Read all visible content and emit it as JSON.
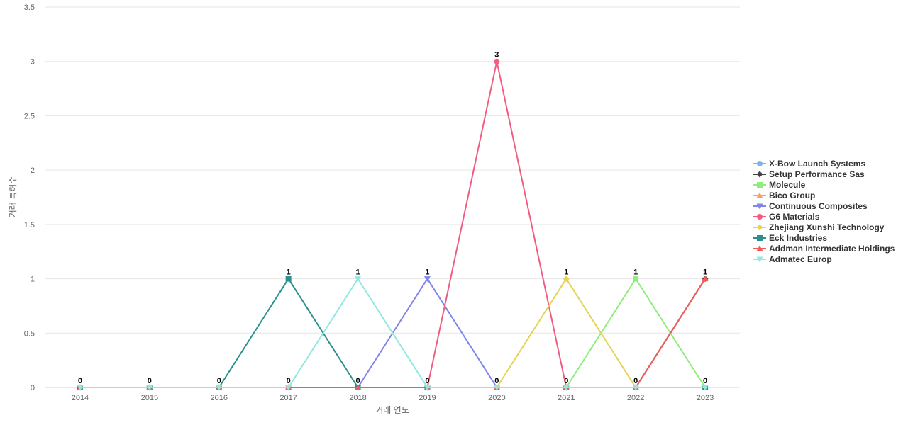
{
  "chart_data": {
    "type": "line",
    "title": "",
    "xlabel": "거래 연도",
    "ylabel": "거래 특허수",
    "categories": [
      "2014",
      "2015",
      "2016",
      "2017",
      "2018",
      "2019",
      "2020",
      "2021",
      "2022",
      "2023"
    ],
    "ylim": [
      0,
      3.5
    ],
    "yticks": [
      "0",
      "0.5",
      "1",
      "1.5",
      "2",
      "2.5",
      "3",
      "3.5"
    ],
    "grid": true,
    "legend_position": "right",
    "series": [
      {
        "name": "X-Bow Launch Systems",
        "color": "#7cb5ec",
        "marker": "circle",
        "values": [
          0,
          0,
          0,
          0,
          0,
          0,
          0,
          0,
          0,
          0
        ]
      },
      {
        "name": "Setup Performance Sas",
        "color": "#434348",
        "marker": "diamond",
        "values": [
          0,
          0,
          0,
          0,
          0,
          0,
          0,
          0,
          0,
          1
        ]
      },
      {
        "name": "Molecule",
        "color": "#90ed7d",
        "marker": "square",
        "values": [
          0,
          0,
          0,
          0,
          0,
          0,
          0,
          0,
          1,
          0
        ]
      },
      {
        "name": "Bico Group",
        "color": "#f7a35c",
        "marker": "triangle",
        "values": [
          0,
          0,
          0,
          0,
          0,
          0,
          0,
          0,
          0,
          0
        ]
      },
      {
        "name": "Continuous Composites",
        "color": "#8085e9",
        "marker": "triangle-down",
        "values": [
          0,
          0,
          0,
          0,
          0,
          1,
          0,
          0,
          0,
          0
        ]
      },
      {
        "name": "G6 Materials",
        "color": "#f15c80",
        "marker": "circle",
        "values": [
          0,
          0,
          0,
          0,
          0,
          0,
          3,
          0,
          0,
          0
        ]
      },
      {
        "name": "Zhejiang Xunshi Technology",
        "color": "#e4d354",
        "marker": "diamond",
        "values": [
          0,
          0,
          0,
          0,
          0,
          0,
          0,
          1,
          0,
          0
        ]
      },
      {
        "name": "Eck Industries",
        "color": "#2b908f",
        "marker": "square",
        "values": [
          0,
          0,
          0,
          1,
          0,
          0,
          0,
          0,
          0,
          0
        ]
      },
      {
        "name": "Addman Intermediate Holdings",
        "color": "#f45b5b",
        "marker": "triangle",
        "values": [
          0,
          0,
          0,
          0,
          0,
          0,
          0,
          0,
          0,
          1
        ]
      },
      {
        "name": "Admatec Europ",
        "color": "#91e8e1",
        "marker": "triangle-down",
        "values": [
          0,
          0,
          0,
          0,
          1,
          0,
          0,
          0,
          0,
          0
        ]
      }
    ],
    "data_labels": [
      {
        "x": "2014",
        "text": "0"
      },
      {
        "x": "2015",
        "text": "0"
      },
      {
        "x": "2016",
        "text": "0"
      },
      {
        "x": "2017",
        "text": "1"
      },
      {
        "x": "2017",
        "text": "0"
      },
      {
        "x": "2018",
        "text": "1"
      },
      {
        "x": "2018",
        "text": "0"
      },
      {
        "x": "2019",
        "text": "1"
      },
      {
        "x": "2019",
        "text": "0"
      },
      {
        "x": "2020",
        "text": "3"
      },
      {
        "x": "2020",
        "text": "0"
      },
      {
        "x": "2021",
        "text": "1"
      },
      {
        "x": "2021",
        "text": "0"
      },
      {
        "x": "2022",
        "text": "1"
      },
      {
        "x": "2022",
        "text": "0"
      },
      {
        "x": "2023",
        "text": "1"
      },
      {
        "x": "2023",
        "text": "0"
      }
    ]
  }
}
